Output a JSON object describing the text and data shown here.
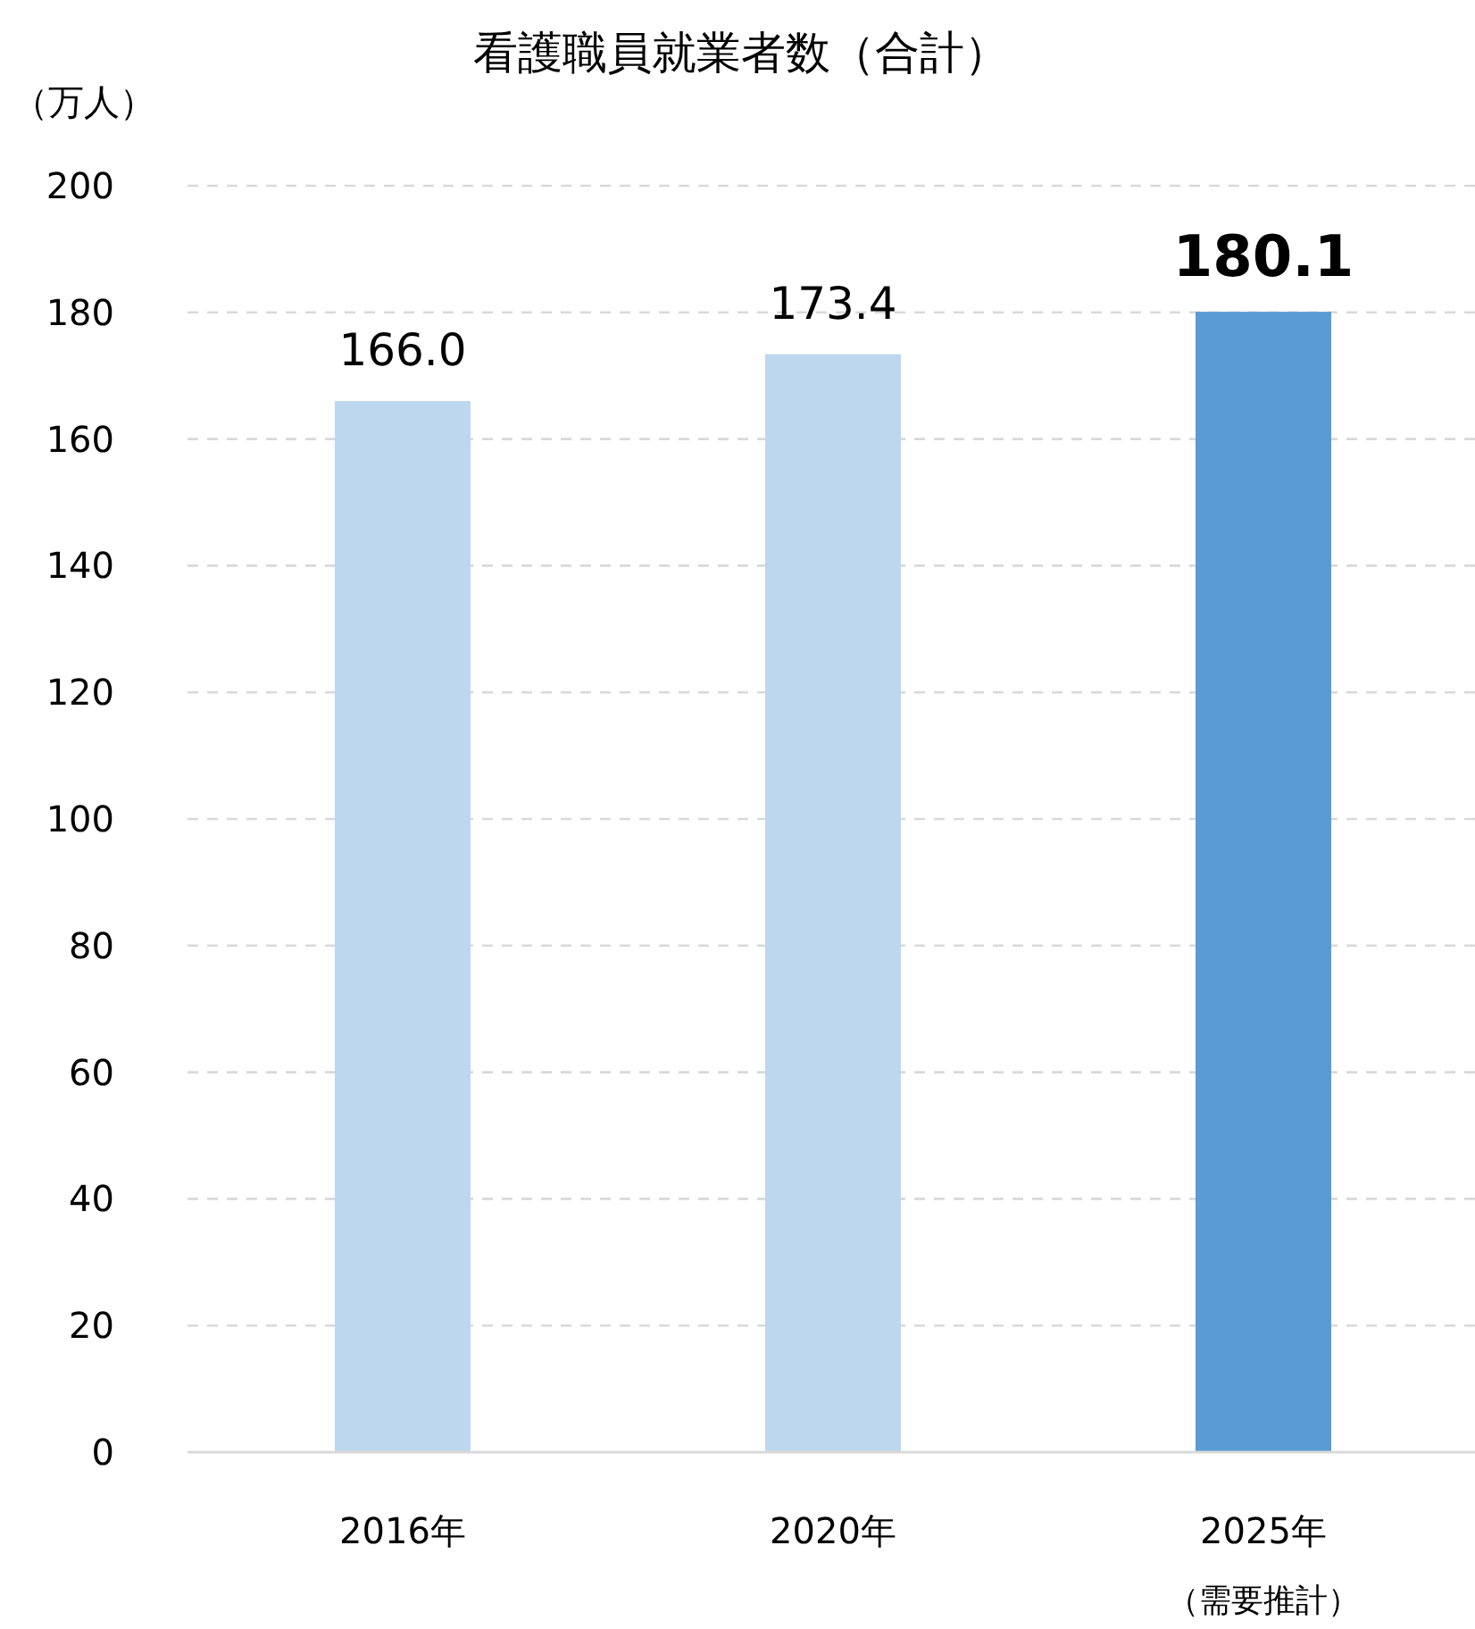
{
  "chart_data": {
    "type": "bar",
    "title": "看護職員就業者数（合計）",
    "ylabel": "（万人）",
    "categories": [
      "2016年",
      "2020年",
      "2025年"
    ],
    "values": [
      166.0,
      173.4,
      180.1
    ],
    "colors": [
      "#bdd7ee",
      "#bdd7ee",
      "#5b9bd5"
    ],
    "value_labels": [
      "166.0",
      "173.4",
      "**180.1**"
    ],
    "annotations": [
      "（需要推計）"
    ],
    "ylim": [
      0,
      200
    ],
    "yticks": [
      0,
      20,
      40,
      60,
      80,
      100,
      120,
      140,
      160,
      180,
      200
    ],
    "grid": "y"
  }
}
